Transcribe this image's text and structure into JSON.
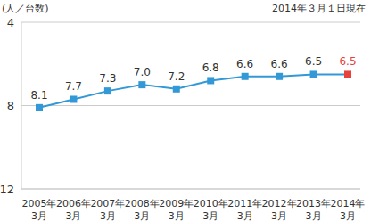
{
  "chart_data": {
    "type": "line",
    "title": "2014年３月１日現在",
    "y_label": "(人／台数)",
    "categories": [
      "2005年3月",
      "2006年3月",
      "2007年3月",
      "2008年3月",
      "2009年3月",
      "2010年3月",
      "2011年3月",
      "2012年3月",
      "2013年3月",
      "2014年3月"
    ],
    "values": [
      8.1,
      7.7,
      7.3,
      7.0,
      7.2,
      6.8,
      6.6,
      6.6,
      6.5,
      6.5
    ],
    "value_labels": [
      "8.1",
      "7.7",
      "7.3",
      "7.0",
      "7.2",
      "6.8",
      "6.6",
      "6.6",
      "6.5",
      "6.5"
    ],
    "color": "#3399d6",
    "colors": [
      "#3399d6",
      "#3399d6",
      "#3399d6",
      "#3399d6",
      "#3399d6",
      "#3399d6",
      "#3399d6",
      "#3399d6",
      "#3399d6",
      "#e8413c"
    ],
    "marker": "square",
    "ylim": [
      12,
      4
    ],
    "yticks": [
      4,
      8,
      12
    ],
    "grid": true,
    "data_labels": true
  }
}
